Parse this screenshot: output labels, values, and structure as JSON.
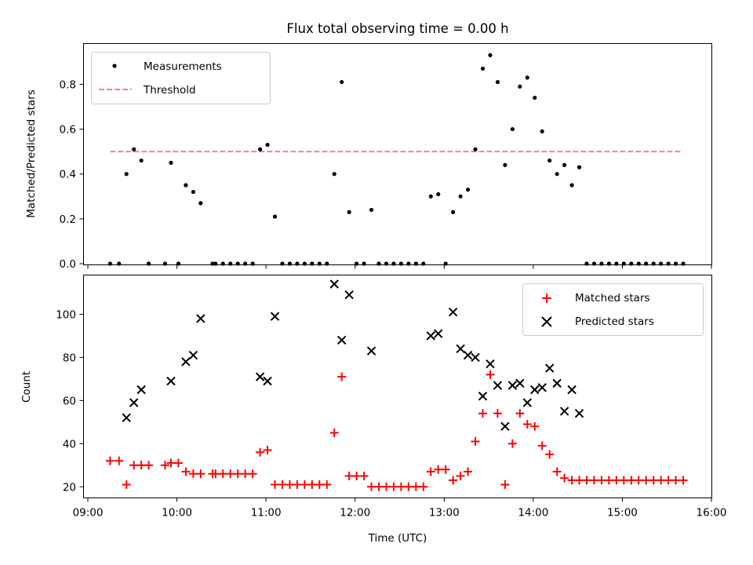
{
  "chart_data": [
    {
      "type": "scatter",
      "title": "Flux total observing time = 0.00 h",
      "ylabel": "Matched/Predicted stars",
      "xlabel": "",
      "xlim": [
        "09:00",
        "16:00"
      ],
      "ylim": [
        0,
        0.98
      ],
      "yticks": [
        "0.0",
        "0.2",
        "0.4",
        "0.6",
        "0.8"
      ],
      "xticks": [
        "09:00",
        "10:00",
        "11:00",
        "12:00",
        "13:00",
        "14:00",
        "15:00",
        "16:00"
      ],
      "xtick_labels_visible": false,
      "grid": false,
      "legend": {
        "placement": "upper left",
        "entries": [
          "Measurements",
          "Threshold"
        ]
      },
      "threshold": {
        "name": "Threshold",
        "value": 0.5,
        "x_range": [
          "09:15",
          "15:40"
        ],
        "color": "#ff8080",
        "style": "dashed"
      },
      "series": [
        {
          "name": "Measurements",
          "marker": "dot",
          "color": "#000000",
          "points": [
            [
              "09:15",
              0
            ],
            [
              "09:21",
              0
            ],
            [
              "09:26",
              0.4
            ],
            [
              "09:31",
              0.51
            ],
            [
              "09:36",
              0.46
            ],
            [
              "09:41",
              0
            ],
            [
              "09:52",
              0
            ],
            [
              "09:56",
              0.45
            ],
            [
              "10:01",
              0
            ],
            [
              "10:06",
              0.35
            ],
            [
              "10:11",
              0.32
            ],
            [
              "10:16",
              0.27
            ],
            [
              "10:24",
              0
            ],
            [
              "10:26",
              0
            ],
            [
              "10:31",
              0
            ],
            [
              "10:36",
              0
            ],
            [
              "10:41",
              0
            ],
            [
              "10:46",
              0
            ],
            [
              "10:51",
              0
            ],
            [
              "10:56",
              0.51
            ],
            [
              "11:01",
              0.53
            ],
            [
              "11:06",
              0.21
            ],
            [
              "11:11",
              0
            ],
            [
              "11:16",
              0
            ],
            [
              "11:21",
              0
            ],
            [
              "11:26",
              0
            ],
            [
              "11:31",
              0
            ],
            [
              "11:36",
              0
            ],
            [
              "11:41",
              0
            ],
            [
              "11:46",
              0.4
            ],
            [
              "11:51",
              0.81
            ],
            [
              "11:56",
              0.23
            ],
            [
              "12:01",
              0
            ],
            [
              "12:06",
              0
            ],
            [
              "12:11",
              0.24
            ],
            [
              "12:16",
              0
            ],
            [
              "12:21",
              0
            ],
            [
              "12:26",
              0
            ],
            [
              "12:31",
              0
            ],
            [
              "12:36",
              0
            ],
            [
              "12:41",
              0
            ],
            [
              "12:46",
              0
            ],
            [
              "12:51",
              0.3
            ],
            [
              "12:56",
              0.31
            ],
            [
              "13:01",
              0
            ],
            [
              "13:06",
              0.23
            ],
            [
              "13:11",
              0.3
            ],
            [
              "13:16",
              0.33
            ],
            [
              "13:21",
              0.51
            ],
            [
              "13:26",
              0.87
            ],
            [
              "13:31",
              0.93
            ],
            [
              "13:36",
              0.81
            ],
            [
              "13:41",
              0.44
            ],
            [
              "13:46",
              0.6
            ],
            [
              "13:51",
              0.79
            ],
            [
              "13:56",
              0.83
            ],
            [
              "14:01",
              0.74
            ],
            [
              "14:06",
              0.59
            ],
            [
              "14:11",
              0.46
            ],
            [
              "14:16",
              0.4
            ],
            [
              "14:21",
              0.44
            ],
            [
              "14:26",
              0.35
            ],
            [
              "14:31",
              0.43
            ],
            [
              "14:36",
              0
            ],
            [
              "14:41",
              0
            ],
            [
              "14:46",
              0
            ],
            [
              "14:51",
              0
            ],
            [
              "14:56",
              0
            ],
            [
              "15:01",
              0
            ],
            [
              "15:06",
              0
            ],
            [
              "15:11",
              0
            ],
            [
              "15:16",
              0
            ],
            [
              "15:21",
              0
            ],
            [
              "15:26",
              0
            ],
            [
              "15:31",
              0
            ],
            [
              "15:36",
              0
            ],
            [
              "15:41",
              0
            ]
          ]
        }
      ]
    },
    {
      "type": "scatter",
      "title": "",
      "xlabel": "Time (UTC)",
      "ylabel": "Count",
      "xlim": [
        "09:00",
        "16:00"
      ],
      "ylim": [
        15,
        118
      ],
      "yticks": [
        "20",
        "40",
        "60",
        "80",
        "100"
      ],
      "xticks": [
        "09:00",
        "10:00",
        "11:00",
        "12:00",
        "13:00",
        "14:00",
        "15:00",
        "16:00"
      ],
      "grid": false,
      "legend": {
        "placement": "upper right",
        "entries": [
          "Matched stars",
          "Predicted stars"
        ]
      },
      "series": [
        {
          "name": "Matched stars",
          "marker": "plus",
          "color": "#ff0000",
          "points": [
            [
              "09:15",
              32
            ],
            [
              "09:21",
              32
            ],
            [
              "09:26",
              21
            ],
            [
              "09:31",
              30
            ],
            [
              "09:36",
              30
            ],
            [
              "09:41",
              30
            ],
            [
              "09:52",
              30
            ],
            [
              "09:56",
              31
            ],
            [
              "10:01",
              31
            ],
            [
              "10:06",
              27
            ],
            [
              "10:11",
              26
            ],
            [
              "10:16",
              26
            ],
            [
              "10:24",
              26
            ],
            [
              "10:26",
              26
            ],
            [
              "10:31",
              26
            ],
            [
              "10:36",
              26
            ],
            [
              "10:41",
              26
            ],
            [
              "10:46",
              26
            ],
            [
              "10:51",
              26
            ],
            [
              "10:56",
              36
            ],
            [
              "11:01",
              37
            ],
            [
              "11:06",
              21
            ],
            [
              "11:11",
              21
            ],
            [
              "11:16",
              21
            ],
            [
              "11:21",
              21
            ],
            [
              "11:26",
              21
            ],
            [
              "11:31",
              21
            ],
            [
              "11:36",
              21
            ],
            [
              "11:41",
              21
            ],
            [
              "11:46",
              45
            ],
            [
              "11:51",
              71
            ],
            [
              "11:56",
              25
            ],
            [
              "12:01",
              25
            ],
            [
              "12:06",
              25
            ],
            [
              "12:11",
              20
            ],
            [
              "12:16",
              20
            ],
            [
              "12:21",
              20
            ],
            [
              "12:26",
              20
            ],
            [
              "12:31",
              20
            ],
            [
              "12:36",
              20
            ],
            [
              "12:41",
              20
            ],
            [
              "12:46",
              20
            ],
            [
              "12:51",
              27
            ],
            [
              "12:56",
              28
            ],
            [
              "13:01",
              28
            ],
            [
              "13:06",
              23
            ],
            [
              "13:11",
              25
            ],
            [
              "13:16",
              27
            ],
            [
              "13:21",
              41
            ],
            [
              "13:26",
              54
            ],
            [
              "13:31",
              72
            ],
            [
              "13:36",
              54
            ],
            [
              "13:41",
              21
            ],
            [
              "13:46",
              40
            ],
            [
              "13:51",
              54
            ],
            [
              "13:56",
              49
            ],
            [
              "14:01",
              48
            ],
            [
              "14:06",
              39
            ],
            [
              "14:11",
              35
            ],
            [
              "14:16",
              27
            ],
            [
              "14:21",
              24
            ],
            [
              "14:26",
              23
            ],
            [
              "14:31",
              23
            ],
            [
              "14:36",
              23
            ],
            [
              "14:41",
              23
            ],
            [
              "14:46",
              23
            ],
            [
              "14:51",
              23
            ],
            [
              "14:56",
              23
            ],
            [
              "15:01",
              23
            ],
            [
              "15:06",
              23
            ],
            [
              "15:11",
              23
            ],
            [
              "15:16",
              23
            ],
            [
              "15:21",
              23
            ],
            [
              "15:26",
              23
            ],
            [
              "15:31",
              23
            ],
            [
              "15:36",
              23
            ],
            [
              "15:41",
              23
            ]
          ]
        },
        {
          "name": "Predicted stars",
          "marker": "x",
          "color": "#000000",
          "points": [
            [
              "09:26",
              52
            ],
            [
              "09:31",
              59
            ],
            [
              "09:36",
              65
            ],
            [
              "09:56",
              69
            ],
            [
              "10:06",
              78
            ],
            [
              "10:11",
              81
            ],
            [
              "10:16",
              98
            ],
            [
              "10:56",
              71
            ],
            [
              "11:01",
              69
            ],
            [
              "11:06",
              99
            ],
            [
              "11:46",
              114
            ],
            [
              "11:51",
              88
            ],
            [
              "11:56",
              109
            ],
            [
              "12:11",
              83
            ],
            [
              "12:51",
              90
            ],
            [
              "12:56",
              91
            ],
            [
              "13:06",
              101
            ],
            [
              "13:11",
              84
            ],
            [
              "13:16",
              81
            ],
            [
              "13:21",
              80
            ],
            [
              "13:26",
              62
            ],
            [
              "13:31",
              77
            ],
            [
              "13:36",
              67
            ],
            [
              "13:41",
              48
            ],
            [
              "13:46",
              67
            ],
            [
              "13:51",
              68
            ],
            [
              "13:56",
              59
            ],
            [
              "14:01",
              65
            ],
            [
              "14:06",
              66
            ],
            [
              "14:11",
              75
            ],
            [
              "14:16",
              68
            ],
            [
              "14:21",
              55
            ],
            [
              "14:26",
              65
            ],
            [
              "14:31",
              54
            ]
          ]
        }
      ]
    }
  ],
  "colors": {
    "matched": "#ff0000",
    "predicted": "#000000",
    "threshold": "#ff8080",
    "measurement": "#000000"
  }
}
